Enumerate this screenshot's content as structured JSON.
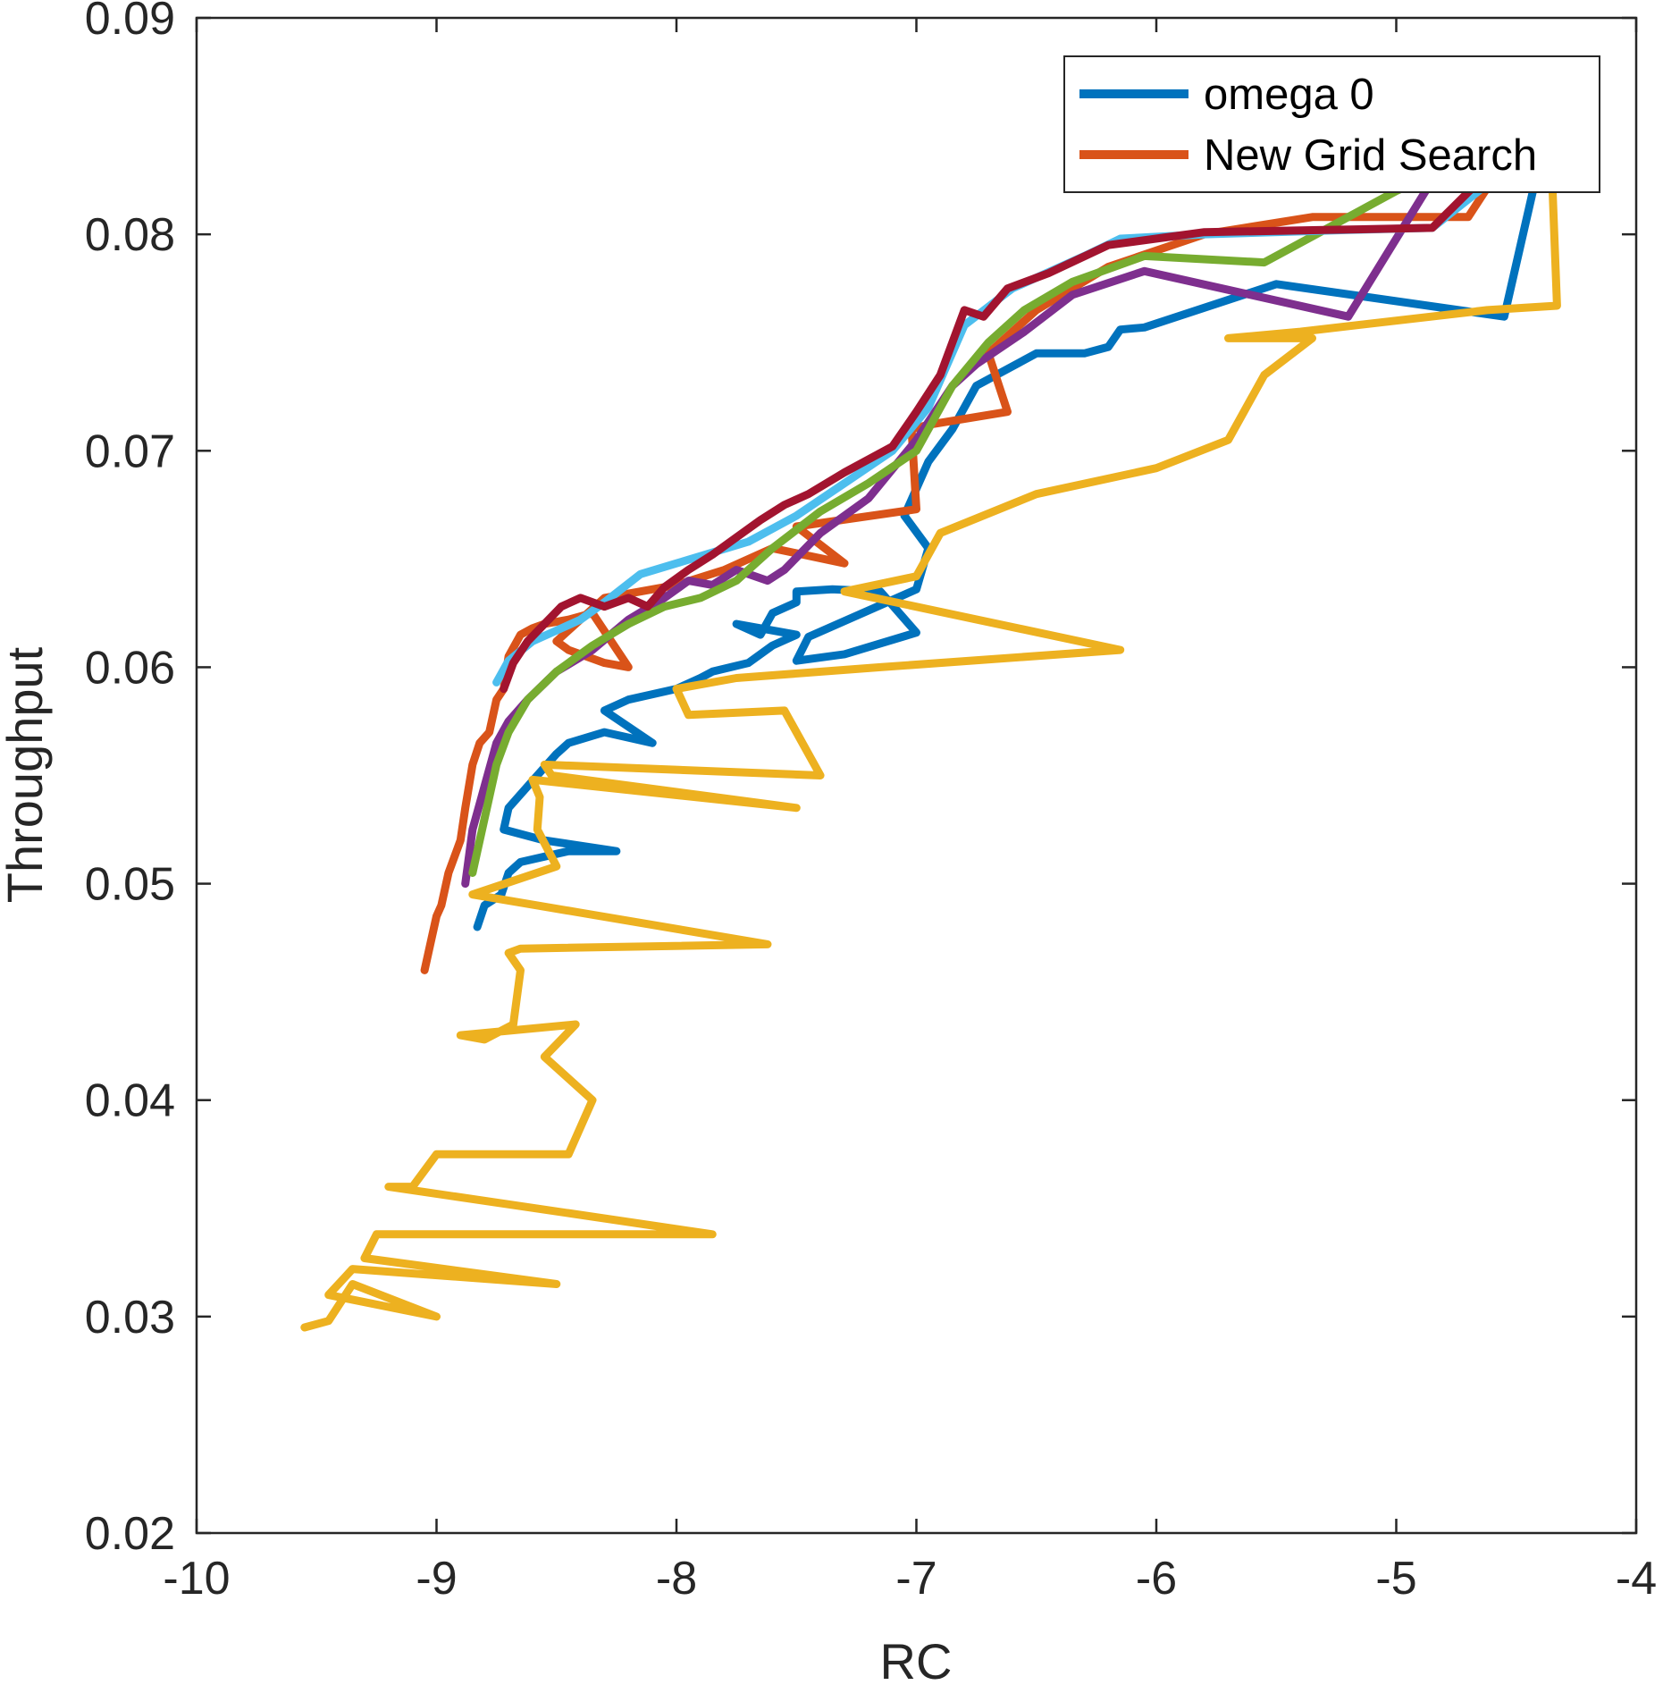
{
  "chart_data": {
    "type": "line",
    "title": "",
    "xlabel": "RC",
    "ylabel": "Throughput",
    "xlim": [
      -10,
      -4
    ],
    "ylim": [
      0.02,
      0.09
    ],
    "xticks": [
      -10,
      -9,
      -8,
      -7,
      -6,
      -5,
      -4
    ],
    "xtick_labels": [
      "-10",
      "-9",
      "-8",
      "-7",
      "-6",
      "-5",
      "-4"
    ],
    "yticks": [
      0.02,
      0.03,
      0.04,
      0.05,
      0.06,
      0.07,
      0.08,
      0.09
    ],
    "ytick_labels": [
      "0.02",
      "0.03",
      "0.04",
      "0.05",
      "0.06",
      "0.07",
      "0.08",
      "0.09"
    ],
    "grid": false,
    "legend": {
      "placement": "top-right",
      "entries": [
        {
          "label": "omega 0",
          "color": "#0072BD"
        },
        {
          "label": "New Grid Search",
          "color": "#D95319"
        }
      ]
    },
    "series": [
      {
        "name": "omega 0",
        "color": "#0072BD",
        "x": [
          -8.83,
          -8.8,
          -8.73,
          -8.7,
          -8.65,
          -8.45,
          -8.25,
          -8.55,
          -8.72,
          -8.7,
          -8.62,
          -8.5,
          -8.45,
          -8.3,
          -8.1,
          -8.3,
          -8.2,
          -8.0,
          -7.9,
          -7.85,
          -7.7,
          -7.6,
          -7.5,
          -7.75,
          -7.65,
          -7.6,
          -7.5,
          -7.5,
          -7.35,
          -7.15,
          -7.0,
          -7.3,
          -7.5,
          -7.45,
          -7.0,
          -6.95,
          -7.05,
          -6.95,
          -6.85,
          -6.75,
          -6.5,
          -6.3,
          -6.2,
          -6.15,
          -6.05,
          -5.5,
          -4.55,
          -4.42
        ],
        "y": [
          0.048,
          0.049,
          0.0495,
          0.0505,
          0.051,
          0.0515,
          0.0515,
          0.052,
          0.0525,
          0.0535,
          0.0545,
          0.056,
          0.0565,
          0.057,
          0.0565,
          0.058,
          0.0585,
          0.059,
          0.0595,
          0.0598,
          0.0602,
          0.061,
          0.0615,
          0.062,
          0.0615,
          0.0625,
          0.063,
          0.0635,
          0.0636,
          0.0635,
          0.0616,
          0.0606,
          0.0603,
          0.0614,
          0.0636,
          0.0655,
          0.067,
          0.0695,
          0.071,
          0.073,
          0.0745,
          0.0745,
          0.0748,
          0.0756,
          0.0757,
          0.0777,
          0.0762,
          0.0825
        ]
      },
      {
        "name": "New Grid Search",
        "color": "#D95319",
        "x": [
          -9.05,
          -9.02,
          -9.0,
          -8.98,
          -8.95,
          -8.9,
          -8.88,
          -8.85,
          -8.82,
          -8.78,
          -8.75,
          -8.72,
          -8.7,
          -8.65,
          -8.6,
          -8.55,
          -8.45,
          -8.35,
          -8.2,
          -8.3,
          -8.45,
          -8.5,
          -8.3,
          -8.0,
          -7.8,
          -7.6,
          -7.3,
          -7.5,
          -7.0,
          -7.02,
          -6.95,
          -6.62,
          -6.7,
          -6.5,
          -6.2,
          -5.8,
          -5.35,
          -4.7,
          -4.6
        ],
        "y": [
          0.046,
          0.0475,
          0.0485,
          0.049,
          0.0505,
          0.052,
          0.0535,
          0.0555,
          0.0565,
          0.057,
          0.0585,
          0.059,
          0.0605,
          0.0615,
          0.0618,
          0.062,
          0.0622,
          0.0625,
          0.06,
          0.0602,
          0.0608,
          0.0612,
          0.0632,
          0.0638,
          0.0645,
          0.0655,
          0.0648,
          0.0665,
          0.0673,
          0.071,
          0.0712,
          0.0718,
          0.0745,
          0.0765,
          0.0785,
          0.08,
          0.0808,
          0.0808,
          0.0825
        ]
      },
      {
        "name": "",
        "color": "#EDB120",
        "x": [
          -9.55,
          -9.45,
          -9.35,
          -9.0,
          -9.45,
          -9.35,
          -8.5,
          -9.3,
          -9.25,
          -7.85,
          -9.2,
          -9.1,
          -9.0,
          -8.95,
          -8.45,
          -8.35,
          -8.55,
          -8.48,
          -8.42,
          -8.9,
          -8.8,
          -8.68,
          -8.65,
          -8.7,
          -8.65,
          -7.62,
          -8.85,
          -8.5,
          -8.58,
          -8.57,
          -8.6,
          -7.5,
          -8.52,
          -8.55,
          -7.4,
          -7.55,
          -7.95,
          -8.0,
          -7.75,
          -7.15,
          -6.15,
          -7.3,
          -7.0,
          -6.9,
          -6.5,
          -6.0,
          -5.7,
          -5.55,
          -5.35,
          -5.7,
          -5.4,
          -4.62,
          -4.33,
          -4.35
        ],
        "y": [
          0.0295,
          0.0298,
          0.0315,
          0.03,
          0.031,
          0.0322,
          0.0315,
          0.0327,
          0.0338,
          0.0338,
          0.036,
          0.036,
          0.0375,
          0.0375,
          0.0375,
          0.04,
          0.042,
          0.0428,
          0.0435,
          0.043,
          0.0428,
          0.0435,
          0.046,
          0.0468,
          0.047,
          0.0472,
          0.0495,
          0.0508,
          0.0525,
          0.054,
          0.0548,
          0.0535,
          0.055,
          0.0555,
          0.055,
          0.058,
          0.0578,
          0.059,
          0.0595,
          0.06,
          0.0608,
          0.0635,
          0.0642,
          0.0662,
          0.068,
          0.0692,
          0.0705,
          0.0735,
          0.0752,
          0.0752,
          0.0755,
          0.0765,
          0.0767,
          0.0825
        ]
      },
      {
        "name": "",
        "color": "#7E2F8E",
        "x": [
          -8.88,
          -8.85,
          -8.8,
          -8.75,
          -8.7,
          -8.62,
          -8.5,
          -8.35,
          -8.2,
          -8.05,
          -7.95,
          -7.85,
          -7.75,
          -7.62,
          -7.55,
          -7.4,
          -7.2,
          -7.0,
          -6.85,
          -6.75,
          -6.55,
          -6.35,
          -6.05,
          -5.2,
          -4.85
        ],
        "y": [
          0.05,
          0.0525,
          0.0545,
          0.0565,
          0.0575,
          0.0585,
          0.0598,
          0.0608,
          0.0622,
          0.0632,
          0.064,
          0.0638,
          0.0645,
          0.064,
          0.0645,
          0.0662,
          0.0678,
          0.0705,
          0.073,
          0.074,
          0.0755,
          0.0772,
          0.0783,
          0.0762,
          0.0825
        ]
      },
      {
        "name": "",
        "color": "#77AC30",
        "x": [
          -8.85,
          -8.8,
          -8.75,
          -8.7,
          -8.62,
          -8.5,
          -8.35,
          -8.2,
          -8.05,
          -7.9,
          -7.75,
          -7.6,
          -7.4,
          -7.2,
          -7.0,
          -6.85,
          -6.7,
          -6.55,
          -6.35,
          -6.05,
          -5.55,
          -5.0,
          -4.9
        ],
        "y": [
          0.0505,
          0.053,
          0.0555,
          0.057,
          0.0585,
          0.0598,
          0.061,
          0.062,
          0.0628,
          0.0632,
          0.064,
          0.0655,
          0.0672,
          0.0685,
          0.07,
          0.073,
          0.075,
          0.0765,
          0.0778,
          0.079,
          0.0787,
          0.082,
          0.0825
        ]
      },
      {
        "name": "",
        "color": "#4DBEEE",
        "x": [
          -8.75,
          -8.7,
          -8.6,
          -8.5,
          -8.4,
          -8.3,
          -8.15,
          -8.0,
          -7.85,
          -7.7,
          -7.5,
          -7.3,
          -7.1,
          -6.95,
          -6.8,
          -6.6,
          -6.3,
          -6.15,
          -5.8,
          -5.2,
          -4.85,
          -4.6
        ],
        "y": [
          0.0593,
          0.0603,
          0.0612,
          0.0617,
          0.0622,
          0.063,
          0.0643,
          0.0648,
          0.0653,
          0.0658,
          0.067,
          0.0685,
          0.07,
          0.072,
          0.0758,
          0.0775,
          0.079,
          0.0798,
          0.08,
          0.0802,
          0.0803,
          0.0825
        ]
      },
      {
        "name": "",
        "color": "#A2142F",
        "x": [
          -8.72,
          -8.68,
          -8.62,
          -8.55,
          -8.48,
          -8.4,
          -8.3,
          -8.2,
          -8.12,
          -8.05,
          -7.95,
          -7.85,
          -7.75,
          -7.65,
          -7.55,
          -7.45,
          -7.3,
          -7.1,
          -7.0,
          -6.9,
          -6.8,
          -6.72,
          -6.62,
          -6.45,
          -6.2,
          -5.8,
          -5.3,
          -4.85,
          -4.65
        ],
        "y": [
          0.059,
          0.0602,
          0.0612,
          0.062,
          0.0628,
          0.0632,
          0.0628,
          0.0632,
          0.0628,
          0.0637,
          0.0645,
          0.0652,
          0.066,
          0.0668,
          0.0675,
          0.068,
          0.069,
          0.0702,
          0.0718,
          0.0735,
          0.0765,
          0.0762,
          0.0775,
          0.0782,
          0.0795,
          0.0801,
          0.0802,
          0.0803,
          0.0825
        ]
      }
    ]
  }
}
